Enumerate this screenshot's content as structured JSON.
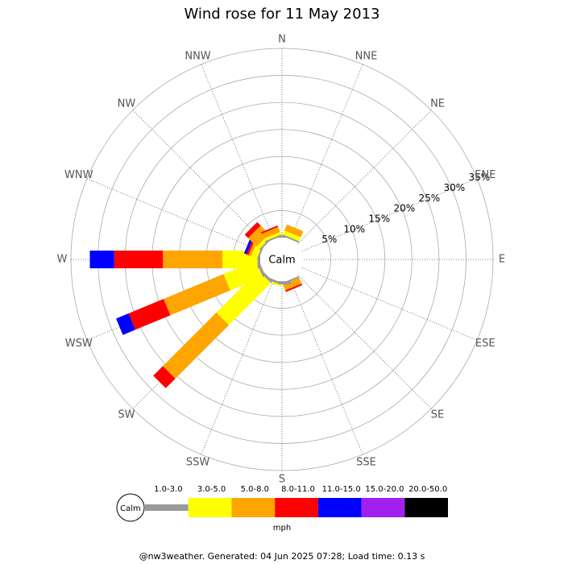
{
  "chart_data": {
    "type": "windrose",
    "title": "Wind rose for 11 May 2013",
    "directions": [
      "N",
      "NNE",
      "NE",
      "ENE",
      "E",
      "ESE",
      "SE",
      "SSE",
      "S",
      "SSW",
      "SW",
      "WSW",
      "W",
      "WNW",
      "NW",
      "NNW"
    ],
    "center_label": "Calm",
    "rlim": [
      0,
      35
    ],
    "rticks": [
      {
        "value": 5,
        "label": "5%"
      },
      {
        "value": 10,
        "label": "10%"
      },
      {
        "value": 15,
        "label": "15%"
      },
      {
        "value": 20,
        "label": "20%"
      },
      {
        "value": 25,
        "label": "25%"
      },
      {
        "value": 30,
        "label": "30%"
      },
      {
        "value": 35,
        "label": "35%"
      }
    ],
    "series": [
      {
        "name": "1.0-3.0",
        "color": "#999999",
        "values": [
          0.3,
          0.3,
          0,
          0,
          0,
          0,
          0,
          0.3,
          0.6,
          0.4,
          0.5,
          0.5,
          0.5,
          0.3,
          0.3,
          0.3
        ]
      },
      {
        "name": "3.0-5.0",
        "color": "#ffff00",
        "values": [
          0.5,
          0.8,
          0,
          0,
          0,
          0,
          0,
          0,
          0,
          0.3,
          11,
          6.5,
          6.5,
          1.2,
          0.7,
          0.5
        ]
      },
      {
        "name": "5.0-8.0",
        "color": "#ffa500",
        "values": [
          0,
          1.2,
          0,
          0,
          0,
          0,
          0,
          1.2,
          0,
          0,
          14,
          12,
          11,
          0.5,
          2.2,
          1
        ]
      },
      {
        "name": "8.0-11.0",
        "color": "#ff0000",
        "values": [
          0,
          0,
          0,
          0,
          0,
          0,
          0,
          0.3,
          0,
          0,
          2.5,
          7,
          9,
          0.4,
          0.9,
          0.3
        ]
      },
      {
        "name": "11.0-15.0",
        "color": "#0000ff",
        "values": [
          0,
          0,
          0,
          0,
          0,
          0,
          0,
          0,
          0,
          0,
          0,
          2.5,
          4.5,
          0.5,
          0,
          0
        ]
      },
      {
        "name": "15.0-20.0",
        "color": "#a020f0",
        "values": [
          0,
          0,
          0,
          0,
          0,
          0,
          0,
          0,
          0,
          0,
          0,
          0,
          0,
          0,
          0,
          0
        ]
      },
      {
        "name": "20.0-50.0",
        "color": "#000000",
        "values": [
          0,
          0,
          0,
          0,
          0,
          0,
          0,
          0,
          0,
          0,
          0,
          0,
          0,
          0,
          0,
          0
        ]
      }
    ],
    "legend_unit": "mph",
    "footer": "@nw3weather. Generated: 04 Jun 2025 07:28; Load time: 0.13 s"
  }
}
